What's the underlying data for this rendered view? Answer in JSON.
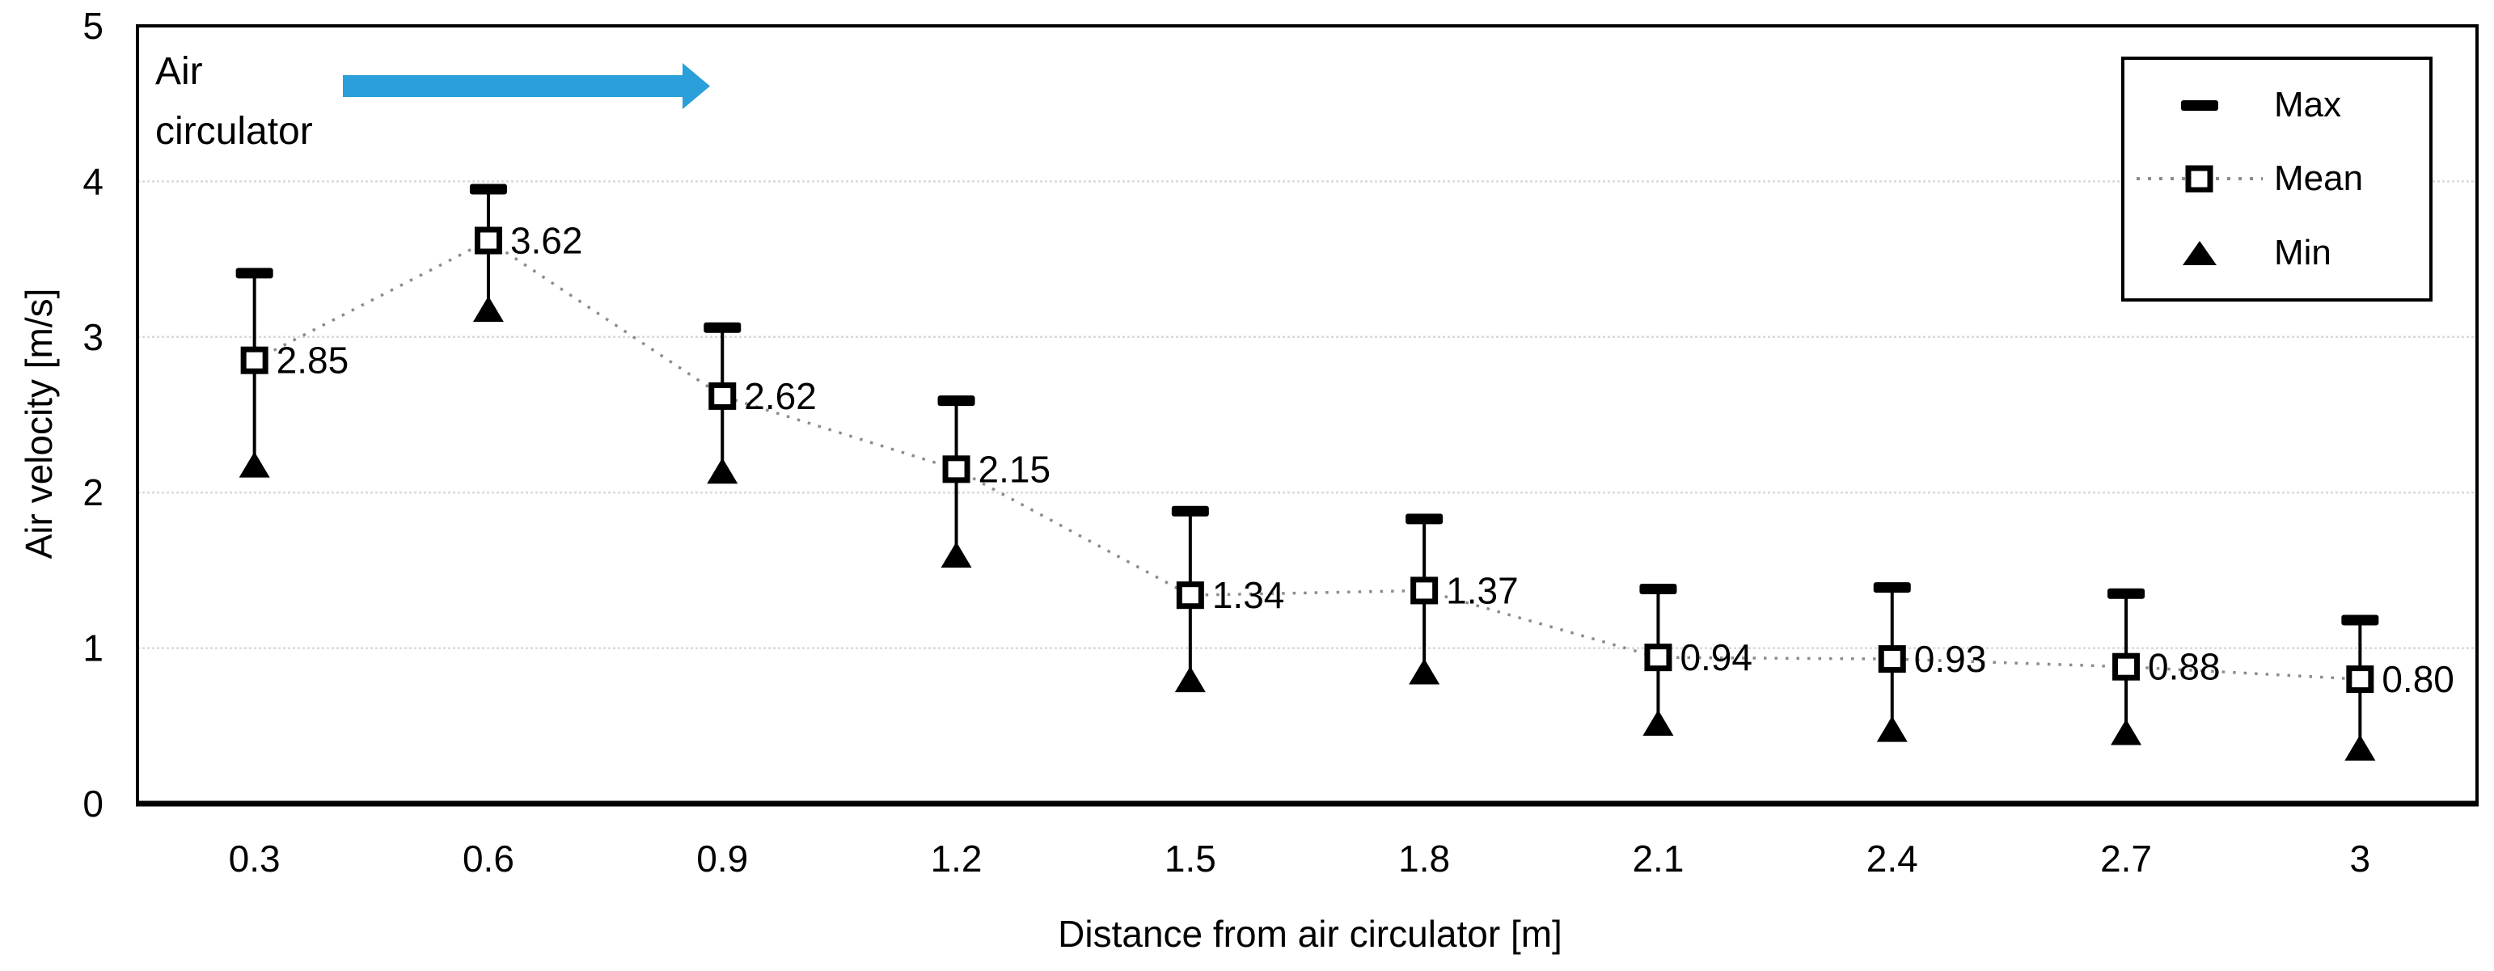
{
  "chart_data": {
    "type": "line",
    "title": "",
    "xlabel": "Distance from air circulator [m]",
    "ylabel": "Air velocity [m/s]",
    "categories": [
      "0.3",
      "0.6",
      "0.9",
      "1.2",
      "1.5",
      "1.8",
      "2.1",
      "2.4",
      "2.7",
      "3"
    ],
    "ylim": [
      0,
      5
    ],
    "yticks": [
      0,
      1,
      2,
      3,
      4,
      5
    ],
    "grid": "horizontal-light",
    "legend_position": "top-right-inside",
    "series": [
      {
        "name": "Max",
        "marker": "black-dash-cap",
        "values": [
          3.41,
          3.95,
          3.06,
          2.59,
          1.88,
          1.83,
          1.38,
          1.39,
          1.35,
          1.18
        ]
      },
      {
        "name": "Mean",
        "marker": "open-square",
        "line": "dotted",
        "values": [
          2.85,
          3.62,
          2.62,
          2.15,
          1.34,
          1.37,
          0.94,
          0.93,
          0.88,
          0.8
        ],
        "labels": [
          "2.85",
          "3.62",
          "2.62",
          "2.15",
          "1.34",
          "1.37",
          "0.94",
          "0.93",
          "0.88",
          "0.80"
        ]
      },
      {
        "name": "Min",
        "marker": "filled-triangle",
        "values": [
          2.18,
          3.18,
          2.14,
          1.6,
          0.8,
          0.85,
          0.52,
          0.48,
          0.46,
          0.36
        ]
      }
    ],
    "error_bars": "vertical line from Min to Max at each category",
    "annotation": {
      "text": "Air\ncirculator",
      "arrow": "right-arrow"
    },
    "colors": {
      "marker": "#000000",
      "mean_line": "#8c8c8c",
      "gridline": "#d9d9d9",
      "axis": "#000000",
      "arrow_blue": "#2B9FD9",
      "background": "#ffffff"
    }
  }
}
